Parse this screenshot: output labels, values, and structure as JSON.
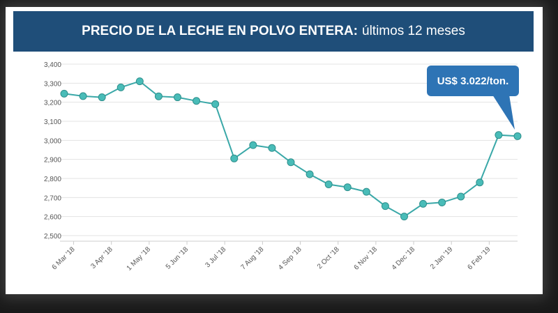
{
  "title": {
    "bold": "PRECIO DE LA LECHE EN POLVO ENTERA:",
    "light": "últimos 12 meses"
  },
  "callout": "US$ 3.022/ton.",
  "colors": {
    "title_bg": "#1f4e79",
    "line": "#3aa8a8",
    "marker_fill": "#49bcb8",
    "callout_bg": "#2e74b5"
  },
  "chart_data": {
    "type": "line",
    "title": "PRECIO DE LA LECHE EN POLVO ENTERA: últimos 12 meses",
    "xlabel": "",
    "ylabel": "",
    "ylim": [
      2500,
      3400
    ],
    "yticks": [
      2500,
      2600,
      2700,
      2800,
      2900,
      3000,
      3100,
      3200,
      3300,
      3400
    ],
    "ytick_labels": [
      "2,500",
      "2,600",
      "2,700",
      "2,800",
      "2,900",
      "3,000",
      "3,100",
      "3,200",
      "3,300",
      "3,400"
    ],
    "xtick_labels": [
      "6 Mar '18",
      "3 Apr '18",
      "1 May '18",
      "5 Jun '18",
      "3 Jul '18",
      "7 Aug '18",
      "4 Sep '18",
      "2 Oct '18",
      "6 Nov '18",
      "4 Dec '18",
      "2 Jan '19",
      "6 Feb '19"
    ],
    "xtick_positions": [
      0.5,
      2.5,
      4.5,
      6.5,
      8.5,
      10.5,
      12.5,
      14.5,
      16.5,
      18.5,
      20.5,
      22.5
    ],
    "grid": true,
    "series": [
      {
        "name": "Precio leche en polvo entera",
        "values": [
          3245,
          3232,
          3226,
          3278,
          3310,
          3231,
          3226,
          3207,
          3190,
          2905,
          2975,
          2960,
          2885,
          2822,
          2769,
          2754,
          2730,
          2655,
          2600,
          2667,
          2674,
          2705,
          2779,
          3028,
          3022
        ]
      }
    ]
  }
}
